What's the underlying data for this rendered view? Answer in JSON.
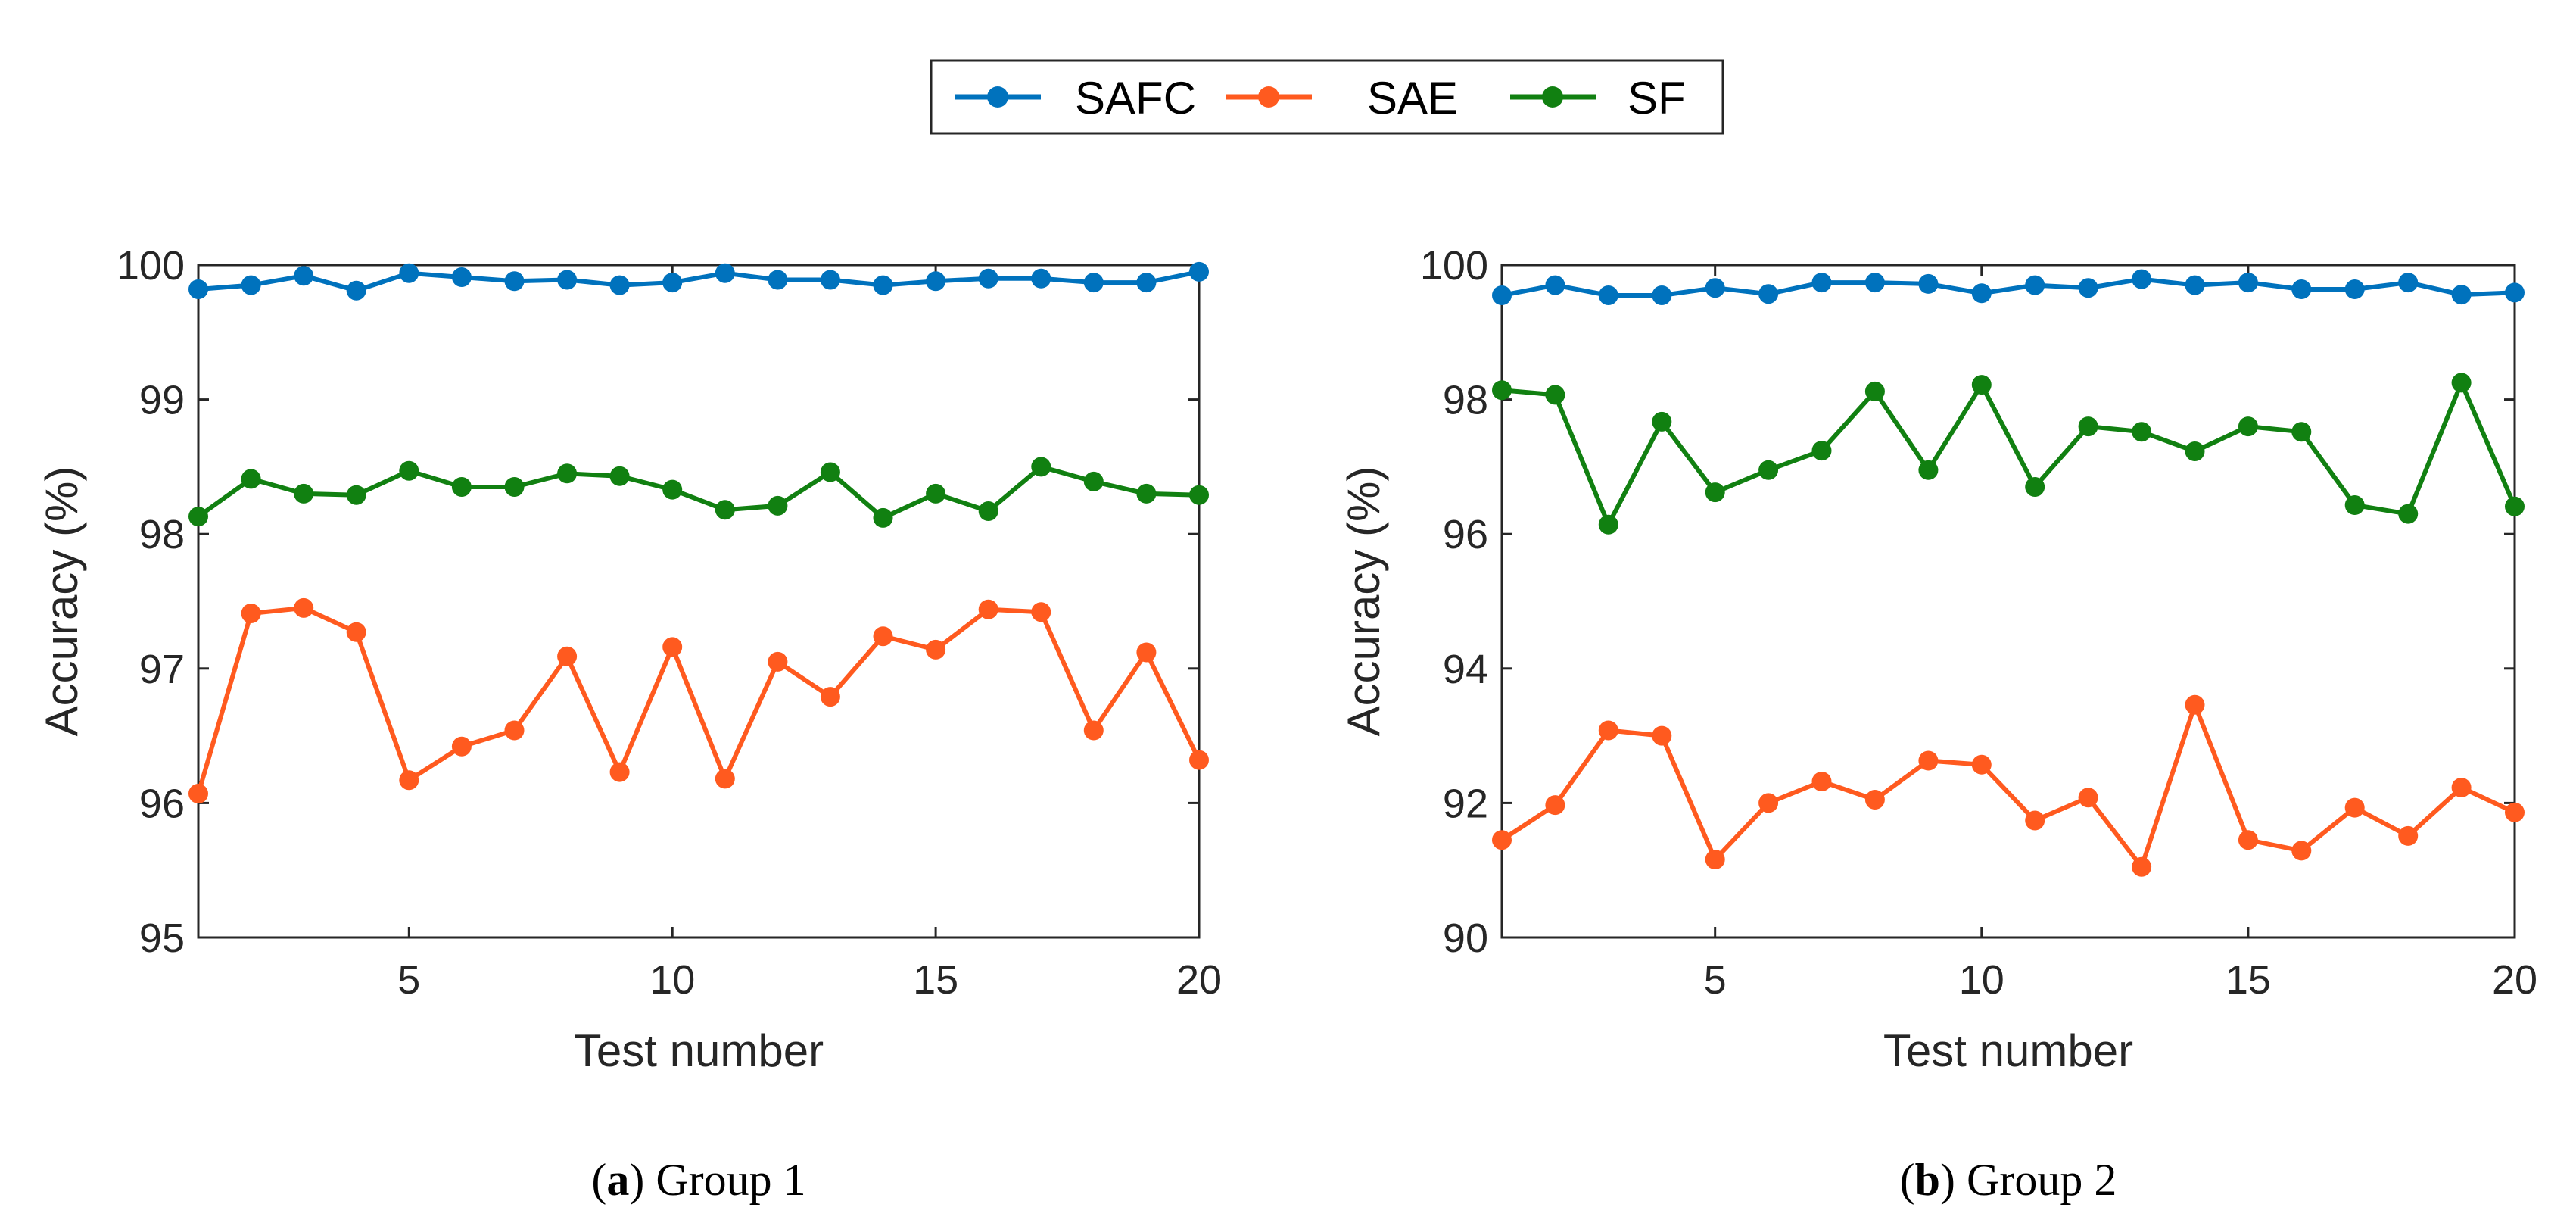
{
  "legend": {
    "entries": [
      {
        "name": "SAFC",
        "color": "#0072BD"
      },
      {
        "name": "SAE",
        "color": "#FF5A1F"
      },
      {
        "name": "SF",
        "color": "#118011"
      }
    ]
  },
  "chart_data": [
    {
      "type": "line",
      "title": "",
      "xlabel": "Test number",
      "ylabel": "Accuracy (%)",
      "xlim": [
        1,
        20
      ],
      "ylim": [
        95,
        100
      ],
      "xticks": [
        5,
        10,
        15,
        20
      ],
      "yticks": [
        95,
        96,
        97,
        98,
        99,
        100
      ],
      "grid": false,
      "x": [
        1,
        2,
        3,
        4,
        5,
        6,
        7,
        8,
        9,
        10,
        11,
        12,
        13,
        14,
        15,
        16,
        17,
        18,
        19,
        20
      ],
      "series": [
        {
          "name": "SAFC",
          "color": "#0072BD",
          "values": [
            99.82,
            99.85,
            99.92,
            99.81,
            99.94,
            99.91,
            99.88,
            99.89,
            99.85,
            99.87,
            99.94,
            99.89,
            99.89,
            99.85,
            99.88,
            99.9,
            99.9,
            99.87,
            99.87,
            99.95
          ]
        },
        {
          "name": "SAE",
          "color": "#FF5A1F",
          "values": [
            96.07,
            97.41,
            97.45,
            97.27,
            96.17,
            96.42,
            96.54,
            97.09,
            96.23,
            97.16,
            96.18,
            97.05,
            96.79,
            97.24,
            97.14,
            97.44,
            97.42,
            96.54,
            97.12,
            96.32
          ]
        },
        {
          "name": "SF",
          "color": "#118011",
          "values": [
            98.13,
            98.41,
            98.3,
            98.29,
            98.47,
            98.35,
            98.35,
            98.45,
            98.43,
            98.33,
            98.18,
            98.21,
            98.46,
            98.12,
            98.3,
            98.17,
            98.5,
            98.39,
            98.3,
            98.29
          ]
        }
      ],
      "caption": {
        "label": "a",
        "text": "Group 1"
      }
    },
    {
      "type": "line",
      "title": "",
      "xlabel": "Test number",
      "ylabel": "Accuracy (%)",
      "xlim": [
        1,
        20
      ],
      "ylim": [
        90,
        100
      ],
      "xticks": [
        5,
        10,
        15,
        20
      ],
      "yticks": [
        90,
        92,
        94,
        96,
        98,
        100
      ],
      "grid": false,
      "x": [
        1,
        2,
        3,
        4,
        5,
        6,
        7,
        8,
        9,
        10,
        11,
        12,
        13,
        14,
        15,
        16,
        17,
        18,
        19,
        20
      ],
      "series": [
        {
          "name": "SAFC",
          "color": "#0072BD",
          "values": [
            99.55,
            99.7,
            99.55,
            99.55,
            99.66,
            99.57,
            99.74,
            99.74,
            99.72,
            99.58,
            99.7,
            99.66,
            99.79,
            99.7,
            99.74,
            99.64,
            99.64,
            99.74,
            99.56,
            99.59
          ]
        },
        {
          "name": "SAE",
          "color": "#FF5A1F",
          "values": [
            91.45,
            91.97,
            93.08,
            93.0,
            91.16,
            92.0,
            92.32,
            92.05,
            92.63,
            92.57,
            91.74,
            92.08,
            91.05,
            93.46,
            91.45,
            91.29,
            91.93,
            91.51,
            92.23,
            91.86
          ]
        },
        {
          "name": "SF",
          "color": "#118011",
          "values": [
            98.14,
            98.07,
            96.14,
            97.67,
            96.62,
            96.95,
            97.24,
            98.12,
            96.95,
            98.22,
            96.7,
            97.6,
            97.52,
            97.23,
            97.6,
            97.52,
            96.43,
            96.3,
            98.25,
            96.41
          ]
        }
      ],
      "caption": {
        "label": "b",
        "text": "Group 2"
      }
    }
  ]
}
